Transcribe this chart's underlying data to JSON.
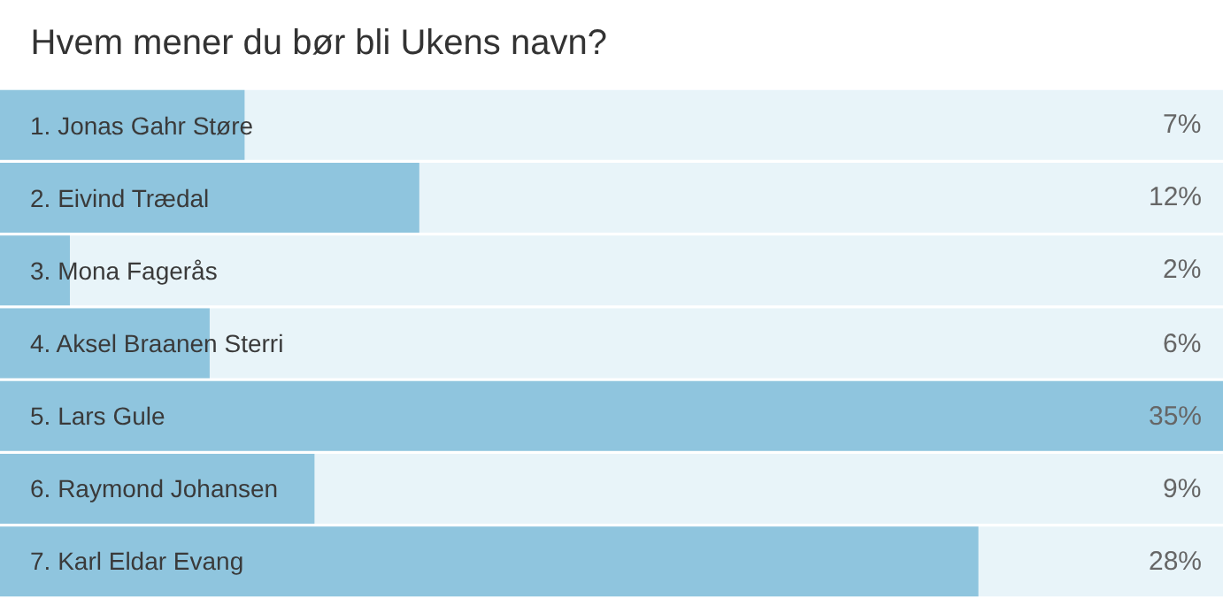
{
  "chart_data": {
    "type": "bar",
    "orientation": "horizontal",
    "title": "Hvem mener du bør bli Ukens navn?",
    "categories": [
      "1. Jonas Gahr Støre",
      "2. Eivind Trædal",
      "3. Mona Fagerås",
      "4. Aksel Braanen Sterri",
      "5. Lars Gule",
      "6. Raymond Johansen",
      "7. Karl Eldar Evang"
    ],
    "values": [
      7,
      12,
      2,
      6,
      35,
      9,
      28
    ],
    "value_labels": [
      "7%",
      "12%",
      "2%",
      "6%",
      "35%",
      "9%",
      "28%"
    ],
    "color": "#8fc5de",
    "xlim": [
      0,
      35
    ],
    "tick_labels": false,
    "grid": false,
    "legend": false
  }
}
